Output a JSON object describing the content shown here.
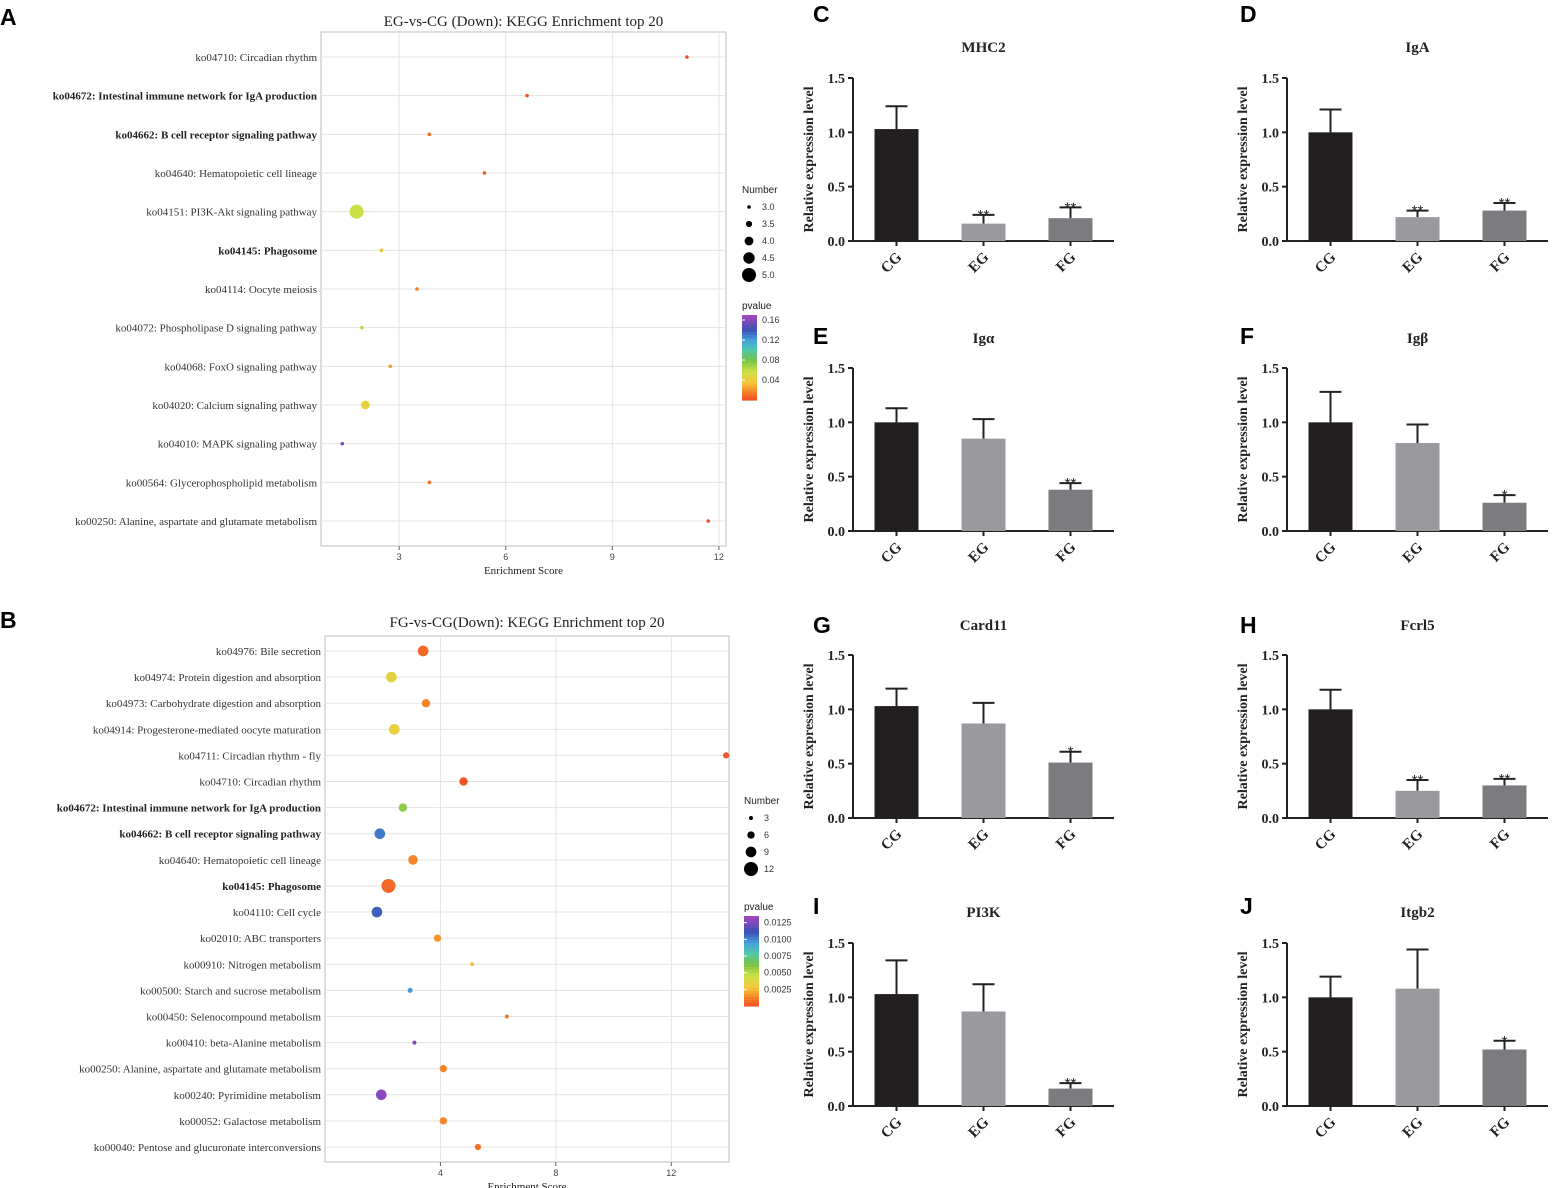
{
  "chart_data": [
    {
      "type": "scatter",
      "panel": "A",
      "title": "EG-vs-CG (Down): KEGG Enrichment top 20",
      "xlabel": "Enrichment Score",
      "ylabel": "",
      "xlim": [
        0.8,
        12.2
      ],
      "xticks": [
        3,
        6,
        9,
        12
      ],
      "grid": true,
      "size_legend": {
        "title": "Number",
        "values": [
          "3.0",
          "3.5",
          "4.0",
          "4.5",
          "5.0"
        ]
      },
      "color_legend": {
        "title": "pvalue",
        "labels": [
          "0.16",
          "0.12",
          "0.08",
          "0.04"
        ],
        "max": 0.17
      },
      "points": [
        {
          "term": "ko04710: Circadian rhythm",
          "bold": false,
          "x": 11.1,
          "number": 3,
          "pvalue": 0.002
        },
        {
          "term": "ko04672: Intestinal immune network for IgA production",
          "bold": true,
          "x": 6.6,
          "number": 3,
          "pvalue": 0.004
        },
        {
          "term": "ko04662: B cell receptor signaling pathway",
          "bold": true,
          "x": 3.85,
          "number": 3,
          "pvalue": 0.012
        },
        {
          "term": "ko04640: Hematopoietic cell lineage",
          "bold": false,
          "x": 5.4,
          "number": 3,
          "pvalue": 0.006
        },
        {
          "term": "ko04151: PI3K-Akt signaling pathway",
          "bold": false,
          "x": 1.8,
          "number": 5,
          "pvalue": 0.06
        },
        {
          "term": "ko04145: Phagosome",
          "bold": true,
          "x": 2.5,
          "number": 3,
          "pvalue": 0.035
        },
        {
          "term": "ko04114: Oocyte meiosis",
          "bold": false,
          "x": 3.5,
          "number": 3,
          "pvalue": 0.016
        },
        {
          "term": "ko04072: Phospholipase D signaling pathway",
          "bold": false,
          "x": 1.95,
          "number": 3,
          "pvalue": 0.065
        },
        {
          "term": "ko04068: FoxO signaling pathway",
          "bold": false,
          "x": 2.75,
          "number": 3,
          "pvalue": 0.026
        },
        {
          "term": "ko04020: Calcium signaling pathway",
          "bold": false,
          "x": 2.05,
          "number": 4,
          "pvalue": 0.045
        },
        {
          "term": "ko04010: MAPK signaling pathway",
          "bold": false,
          "x": 1.4,
          "number": 3,
          "pvalue": 0.16
        },
        {
          "term": "ko00564: Glycerophospholipid metabolism",
          "bold": false,
          "x": 3.85,
          "number": 3,
          "pvalue": 0.012
        },
        {
          "term": "ko00250: Alanine, aspartate and glutamate metabolism",
          "bold": false,
          "x": 11.7,
          "number": 3,
          "pvalue": 0.002
        }
      ]
    },
    {
      "type": "scatter",
      "panel": "B",
      "title": "FG-vs-CG(Down): KEGG Enrichment top 20",
      "xlabel": "Enrichment Score",
      "ylabel": "",
      "xlim": [
        0,
        14
      ],
      "xticks": [
        4,
        8,
        12
      ],
      "grid": true,
      "size_legend": {
        "title": "Number",
        "values": [
          "3",
          "6",
          "9",
          "12"
        ]
      },
      "color_legend": {
        "title": "pvalue",
        "labels": [
          "0.0125",
          "0.0100",
          "0.0075",
          "0.0050",
          "0.0025"
        ],
        "max": 0.0135
      },
      "points": [
        {
          "term": "ko04976: Bile secretion",
          "bold": false,
          "x": 3.4,
          "number": 9,
          "pvalue": 0.0008
        },
        {
          "term": "ko04974: Protein digestion and absorption",
          "bold": false,
          "x": 2.3,
          "number": 9,
          "pvalue": 0.0038
        },
        {
          "term": "ko04973: Carbohydrate digestion and absorption",
          "bold": false,
          "x": 3.5,
          "number": 7,
          "pvalue": 0.0015
        },
        {
          "term": "ko04914: Progesterone-mediated oocyte maturation",
          "bold": false,
          "x": 2.4,
          "number": 9,
          "pvalue": 0.0035
        },
        {
          "term": "ko04711: Circadian rhythm - fly",
          "bold": false,
          "x": 13.9,
          "number": 5,
          "pvalue": 0.0003
        },
        {
          "term": "ko04710: Circadian rhythm",
          "bold": false,
          "x": 4.8,
          "number": 7,
          "pvalue": 0.0004
        },
        {
          "term": "ko04672: Intestinal immune network for IgA production",
          "bold": true,
          "x": 2.7,
          "number": 7,
          "pvalue": 0.006
        },
        {
          "term": "ko04662: B cell receptor signaling pathway",
          "bold": true,
          "x": 1.9,
          "number": 9,
          "pvalue": 0.0105
        },
        {
          "term": "ko04640: Hematopoietic cell lineage",
          "bold": false,
          "x": 3.05,
          "number": 8,
          "pvalue": 0.0015
        },
        {
          "term": "ko04145: Phagosome",
          "bold": true,
          "x": 2.2,
          "number": 12,
          "pvalue": 0.0008
        },
        {
          "term": "ko04110: Cell cycle",
          "bold": false,
          "x": 1.8,
          "number": 9,
          "pvalue": 0.011
        },
        {
          "term": "ko02010: ABC transporters",
          "bold": false,
          "x": 3.9,
          "number": 6,
          "pvalue": 0.0018
        },
        {
          "term": "ko00910: Nitrogen metabolism",
          "bold": false,
          "x": 5.1,
          "number": 3,
          "pvalue": 0.0028
        },
        {
          "term": "ko00500: Starch and sucrose metabolism",
          "bold": false,
          "x": 2.95,
          "number": 4,
          "pvalue": 0.0098
        },
        {
          "term": "ko00450: Selenocompound metabolism",
          "bold": false,
          "x": 6.3,
          "number": 3,
          "pvalue": 0.0012
        },
        {
          "term": "ko00410: beta-Alanine metabolism",
          "bold": false,
          "x": 3.1,
          "number": 3,
          "pvalue": 0.0128
        },
        {
          "term": "ko00250: Alanine, aspartate and glutamate metabolism",
          "bold": false,
          "x": 4.1,
          "number": 6,
          "pvalue": 0.0015
        },
        {
          "term": "ko00240: Pyrimidine metabolism",
          "bold": false,
          "x": 1.95,
          "number": 9,
          "pvalue": 0.013
        },
        {
          "term": "ko00052: Galactose metabolism",
          "bold": false,
          "x": 4.1,
          "number": 6,
          "pvalue": 0.0015
        },
        {
          "term": "ko00040: Pentose and glucuronate interconversions",
          "bold": false,
          "x": 5.3,
          "number": 5,
          "pvalue": 0.001
        }
      ]
    },
    {
      "type": "bar",
      "panel": "C",
      "title": "MHC2",
      "ylabel": "Relative expression level",
      "categories": [
        "CG",
        "EG",
        "FG"
      ],
      "values": [
        1.03,
        0.16,
        0.21
      ],
      "errors": [
        0.21,
        0.08,
        0.1
      ],
      "significance": [
        "",
        "**",
        "**"
      ],
      "ylim": [
        0,
        1.5
      ],
      "yticks": [
        "0.0",
        "0.5",
        "1.0",
        "1.5"
      ],
      "colors": [
        "#231f20",
        "#9a9a9e",
        "#7b7b80"
      ]
    },
    {
      "type": "bar",
      "panel": "D",
      "title": "IgA",
      "ylabel": "Relative expression level",
      "categories": [
        "CG",
        "EG",
        "FG"
      ],
      "values": [
        1.0,
        0.22,
        0.28
      ],
      "errors": [
        0.21,
        0.06,
        0.07
      ],
      "significance": [
        "",
        "**",
        "**"
      ],
      "ylim": [
        0,
        1.5
      ],
      "yticks": [
        "0.0",
        "0.5",
        "1.0",
        "1.5"
      ],
      "colors": [
        "#231f20",
        "#9a9a9e",
        "#7b7b80"
      ]
    },
    {
      "type": "bar",
      "panel": "E",
      "title": "Igα",
      "ylabel": "Relative expression level",
      "categories": [
        "CG",
        "EG",
        "FG"
      ],
      "values": [
        1.0,
        0.85,
        0.38
      ],
      "errors": [
        0.13,
        0.18,
        0.06
      ],
      "significance": [
        "",
        "",
        "**"
      ],
      "ylim": [
        0,
        1.5
      ],
      "yticks": [
        "0.0",
        "0.5",
        "1.0",
        "1.5"
      ],
      "colors": [
        "#231f20",
        "#9a9a9e",
        "#7b7b80"
      ]
    },
    {
      "type": "bar",
      "panel": "F",
      "title": "Igβ",
      "ylabel": "Relative expression level",
      "categories": [
        "CG",
        "EG",
        "FG"
      ],
      "values": [
        1.0,
        0.81,
        0.26
      ],
      "errors": [
        0.28,
        0.17,
        0.07
      ],
      "significance": [
        "",
        "",
        "*"
      ],
      "ylim": [
        0,
        1.5
      ],
      "yticks": [
        "0.0",
        "0.5",
        "1.0",
        "1.5"
      ],
      "colors": [
        "#231f20",
        "#9a9a9e",
        "#7b7b80"
      ]
    },
    {
      "type": "bar",
      "panel": "G",
      "title": "Card11",
      "ylabel": "Relative expression level",
      "categories": [
        "CG",
        "EG",
        "FG"
      ],
      "values": [
        1.03,
        0.87,
        0.51
      ],
      "errors": [
        0.16,
        0.19,
        0.1
      ],
      "significance": [
        "",
        "",
        "*"
      ],
      "ylim": [
        0,
        1.5
      ],
      "yticks": [
        "0.0",
        "0.5",
        "1.0",
        "1.5"
      ],
      "colors": [
        "#231f20",
        "#9a9a9e",
        "#7b7b80"
      ]
    },
    {
      "type": "bar",
      "panel": "H",
      "title": "Fcrl5",
      "ylabel": "Relative expression level",
      "categories": [
        "CG",
        "EG",
        "FG"
      ],
      "values": [
        1.0,
        0.25,
        0.3
      ],
      "errors": [
        0.18,
        0.1,
        0.06
      ],
      "significance": [
        "",
        "**",
        "**"
      ],
      "ylim": [
        0,
        1.5
      ],
      "yticks": [
        "0.0",
        "0.5",
        "1.0",
        "1.5"
      ],
      "colors": [
        "#231f20",
        "#9a9a9e",
        "#7b7b80"
      ]
    },
    {
      "type": "bar",
      "panel": "I",
      "title": "PI3K",
      "ylabel": "Relative expression level",
      "categories": [
        "CG",
        "EG",
        "FG"
      ],
      "values": [
        1.03,
        0.87,
        0.16
      ],
      "errors": [
        0.31,
        0.25,
        0.05
      ],
      "significance": [
        "",
        "",
        "**"
      ],
      "ylim": [
        0,
        1.5
      ],
      "yticks": [
        "0.0",
        "0.5",
        "1.0",
        "1.5"
      ],
      "colors": [
        "#231f20",
        "#9a9a9e",
        "#7b7b80"
      ]
    },
    {
      "type": "bar",
      "panel": "J",
      "title": "Itgb2",
      "ylabel": "Relative expression level",
      "categories": [
        "CG",
        "EG",
        "FG"
      ],
      "values": [
        1.0,
        1.08,
        0.52
      ],
      "errors": [
        0.19,
        0.36,
        0.08
      ],
      "significance": [
        "",
        "",
        "*"
      ],
      "ylim": [
        0,
        1.5
      ],
      "yticks": [
        "0.0",
        "0.5",
        "1.0",
        "1.5"
      ],
      "colors": [
        "#231f20",
        "#9a9a9e",
        "#7b7b80"
      ]
    }
  ]
}
